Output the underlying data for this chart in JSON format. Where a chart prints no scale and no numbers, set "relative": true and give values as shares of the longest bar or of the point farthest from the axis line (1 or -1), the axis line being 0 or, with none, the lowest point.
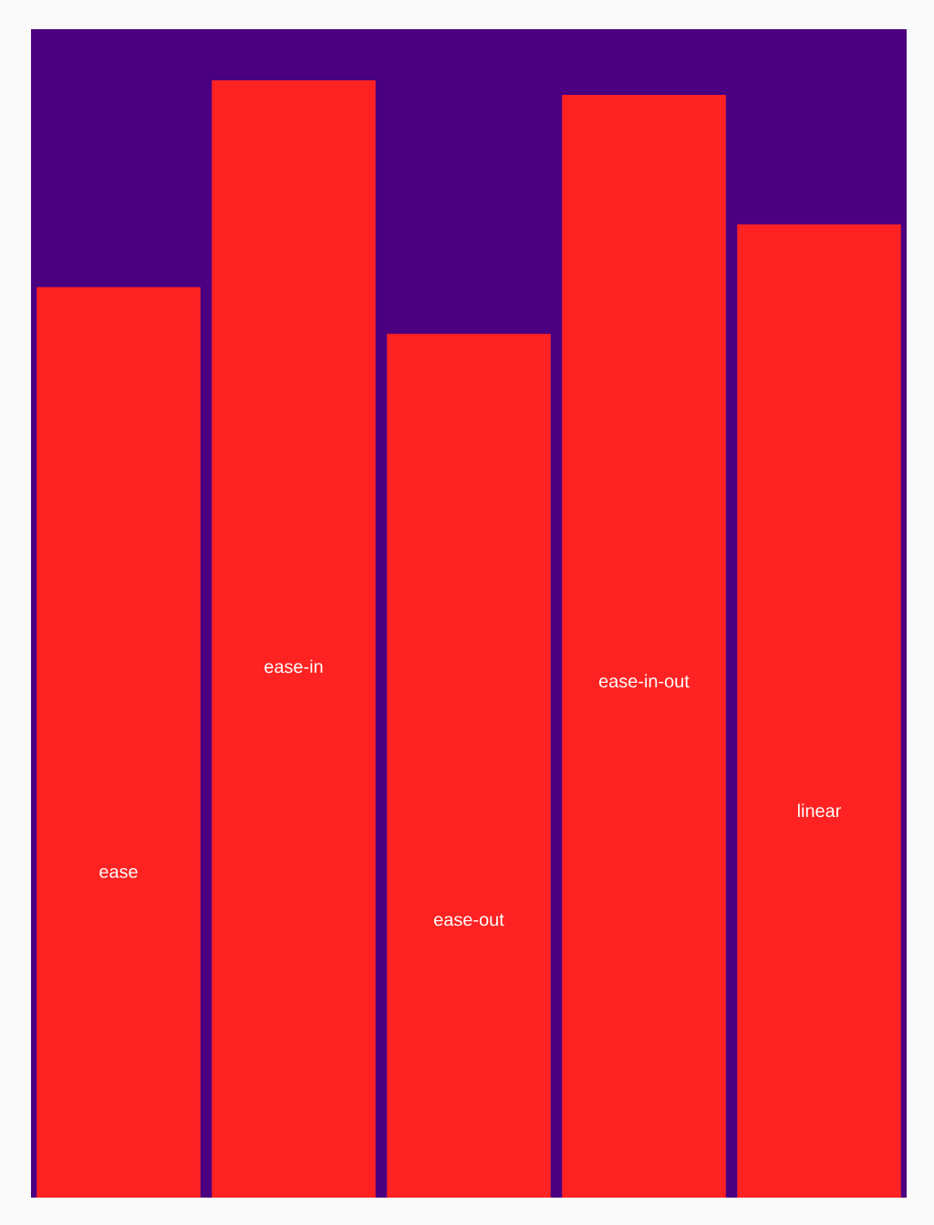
{
  "chart_data": {
    "type": "bar",
    "relative": true,
    "categories": [
      "ease",
      "ease-in",
      "ease-out",
      "ease-in-out",
      "linear"
    ],
    "values": [
      0.815,
      1,
      0.773,
      0.987,
      0.871
    ],
    "color": "#ff2222"
  }
}
